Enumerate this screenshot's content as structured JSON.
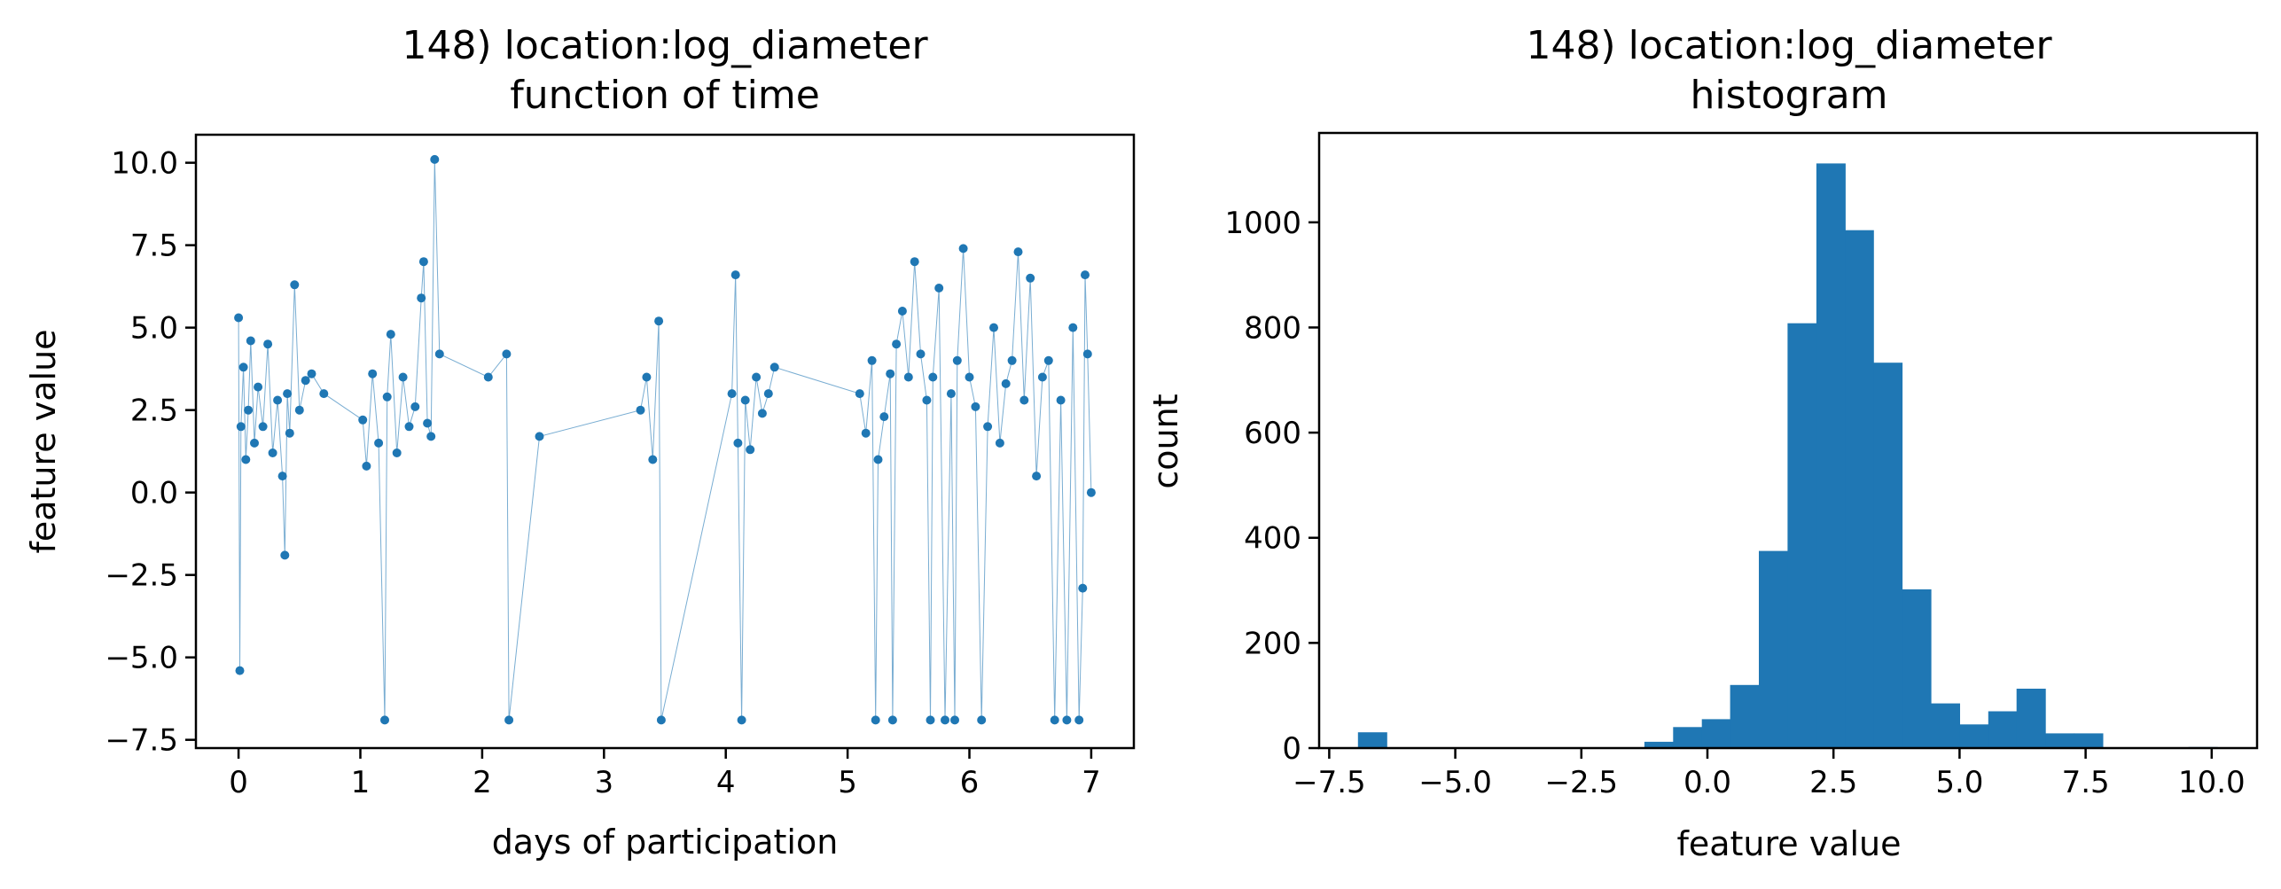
{
  "colors": {
    "series": "#1f77b4",
    "axis": "#000000",
    "background": "#ffffff"
  },
  "chart_data": [
    {
      "type": "scatter",
      "title": "148) location:log_diameter",
      "subtitle": "function of time",
      "xlabel": "days of participation",
      "ylabel": "feature value",
      "xlim": [
        -0.35,
        7.35
      ],
      "ylim": [
        -7.75,
        10.85
      ],
      "xticks": [
        0,
        1,
        2,
        3,
        4,
        5,
        6,
        7
      ],
      "xtick_labels": [
        "0",
        "1",
        "2",
        "3",
        "4",
        "5",
        "6",
        "7"
      ],
      "yticks": [
        -7.5,
        -5.0,
        -2.5,
        0.0,
        2.5,
        5.0,
        7.5,
        10.0
      ],
      "ytick_labels": [
        "−7.5",
        "−5.0",
        "−2.5",
        "0.0",
        "2.5",
        "5.0",
        "7.5",
        "10.0"
      ],
      "grid": false,
      "series": [
        {
          "x": [
            0.0,
            0.01,
            0.02,
            0.04,
            0.06,
            0.08,
            0.1,
            0.13,
            0.16,
            0.2,
            0.24,
            0.28,
            0.32,
            0.36,
            0.38,
            0.4,
            0.42,
            0.46,
            0.5,
            0.55,
            0.6,
            0.7,
            1.02,
            1.05,
            1.1,
            1.15,
            1.2,
            1.22,
            1.25,
            1.3,
            1.35,
            1.4,
            1.45,
            1.5,
            1.52,
            1.55,
            1.58,
            1.61,
            1.65,
            2.05,
            2.2,
            2.22,
            2.47,
            3.3,
            3.35,
            3.4,
            3.45,
            3.47,
            4.05,
            4.08,
            4.1,
            4.13,
            4.16,
            4.2,
            4.25,
            4.3,
            4.35,
            4.4,
            5.1,
            5.15,
            5.2,
            5.23,
            5.25,
            5.3,
            5.35,
            5.37,
            5.4,
            5.45,
            5.5,
            5.55,
            5.6,
            5.65,
            5.68,
            5.7,
            5.75,
            5.8,
            5.85,
            5.88,
            5.9,
            5.95,
            6.0,
            6.05,
            6.1,
            6.15,
            6.2,
            6.25,
            6.3,
            6.35,
            6.4,
            6.45,
            6.5,
            6.55,
            6.6,
            6.65,
            6.7,
            6.75,
            6.8,
            6.85,
            6.9,
            6.93,
            6.95,
            6.97,
            7.0
          ],
          "y": [
            5.3,
            -5.4,
            2.0,
            3.8,
            1.0,
            2.5,
            4.6,
            1.5,
            3.2,
            2.0,
            4.5,
            1.2,
            2.8,
            0.5,
            -1.9,
            3.0,
            1.8,
            6.3,
            2.5,
            3.4,
            3.6,
            3.0,
            2.2,
            0.8,
            3.6,
            1.5,
            -6.9,
            2.9,
            4.8,
            1.2,
            3.5,
            2.0,
            2.6,
            5.9,
            7.0,
            2.1,
            1.7,
            10.1,
            4.2,
            3.5,
            4.2,
            -6.9,
            1.7,
            2.5,
            3.5,
            1.0,
            5.2,
            -6.9,
            3.0,
            6.6,
            1.5,
            -6.9,
            2.8,
            1.3,
            3.5,
            2.4,
            3.0,
            3.8,
            3.0,
            1.8,
            4.0,
            -6.9,
            1.0,
            2.3,
            3.6,
            -6.9,
            4.5,
            5.5,
            3.5,
            7.0,
            4.2,
            2.8,
            -6.9,
            3.5,
            6.2,
            -6.9,
            3.0,
            -6.9,
            4.0,
            7.4,
            3.5,
            2.6,
            -6.9,
            2.0,
            5.0,
            1.5,
            3.3,
            4.0,
            7.3,
            2.8,
            6.5,
            0.5,
            3.5,
            4.0,
            -6.9,
            2.8,
            -6.9,
            5.0,
            -6.9,
            -2.9,
            6.6,
            4.2,
            0.0
          ]
        }
      ]
    },
    {
      "type": "bar",
      "title": "148) location:log_diameter",
      "subtitle": "histogram",
      "xlabel": "feature value",
      "ylabel": "count",
      "xlim": [
        -7.7,
        10.9
      ],
      "ylim": [
        0,
        1170
      ],
      "xticks": [
        -7.5,
        -5.0,
        -2.5,
        0.0,
        2.5,
        5.0,
        7.5,
        10.0
      ],
      "xtick_labels": [
        "−7.5",
        "−5.0",
        "−2.5",
        "0.0",
        "2.5",
        "5.0",
        "7.5",
        "10.0"
      ],
      "yticks": [
        0,
        200,
        400,
        600,
        800,
        1000
      ],
      "ytick_labels": [
        "0",
        "200",
        "400",
        "600",
        "800",
        "1000"
      ],
      "grid": false,
      "bin_edges": [
        -6.93,
        -6.36,
        -5.8,
        -5.23,
        -4.66,
        -4.09,
        -3.52,
        -2.96,
        -2.39,
        -1.82,
        -1.25,
        -0.68,
        -0.11,
        0.45,
        1.02,
        1.59,
        2.16,
        2.73,
        3.29,
        3.86,
        4.43,
        5.0,
        5.57,
        6.13,
        6.7,
        7.27,
        7.84,
        8.41,
        8.98,
        9.54,
        10.11
      ],
      "values": [
        30,
        0,
        0,
        0,
        0,
        0,
        0,
        0,
        0,
        0,
        12,
        40,
        55,
        120,
        375,
        808,
        1112,
        985,
        733,
        302,
        85,
        45,
        70,
        113,
        28,
        28,
        0,
        0,
        0,
        2
      ]
    }
  ]
}
